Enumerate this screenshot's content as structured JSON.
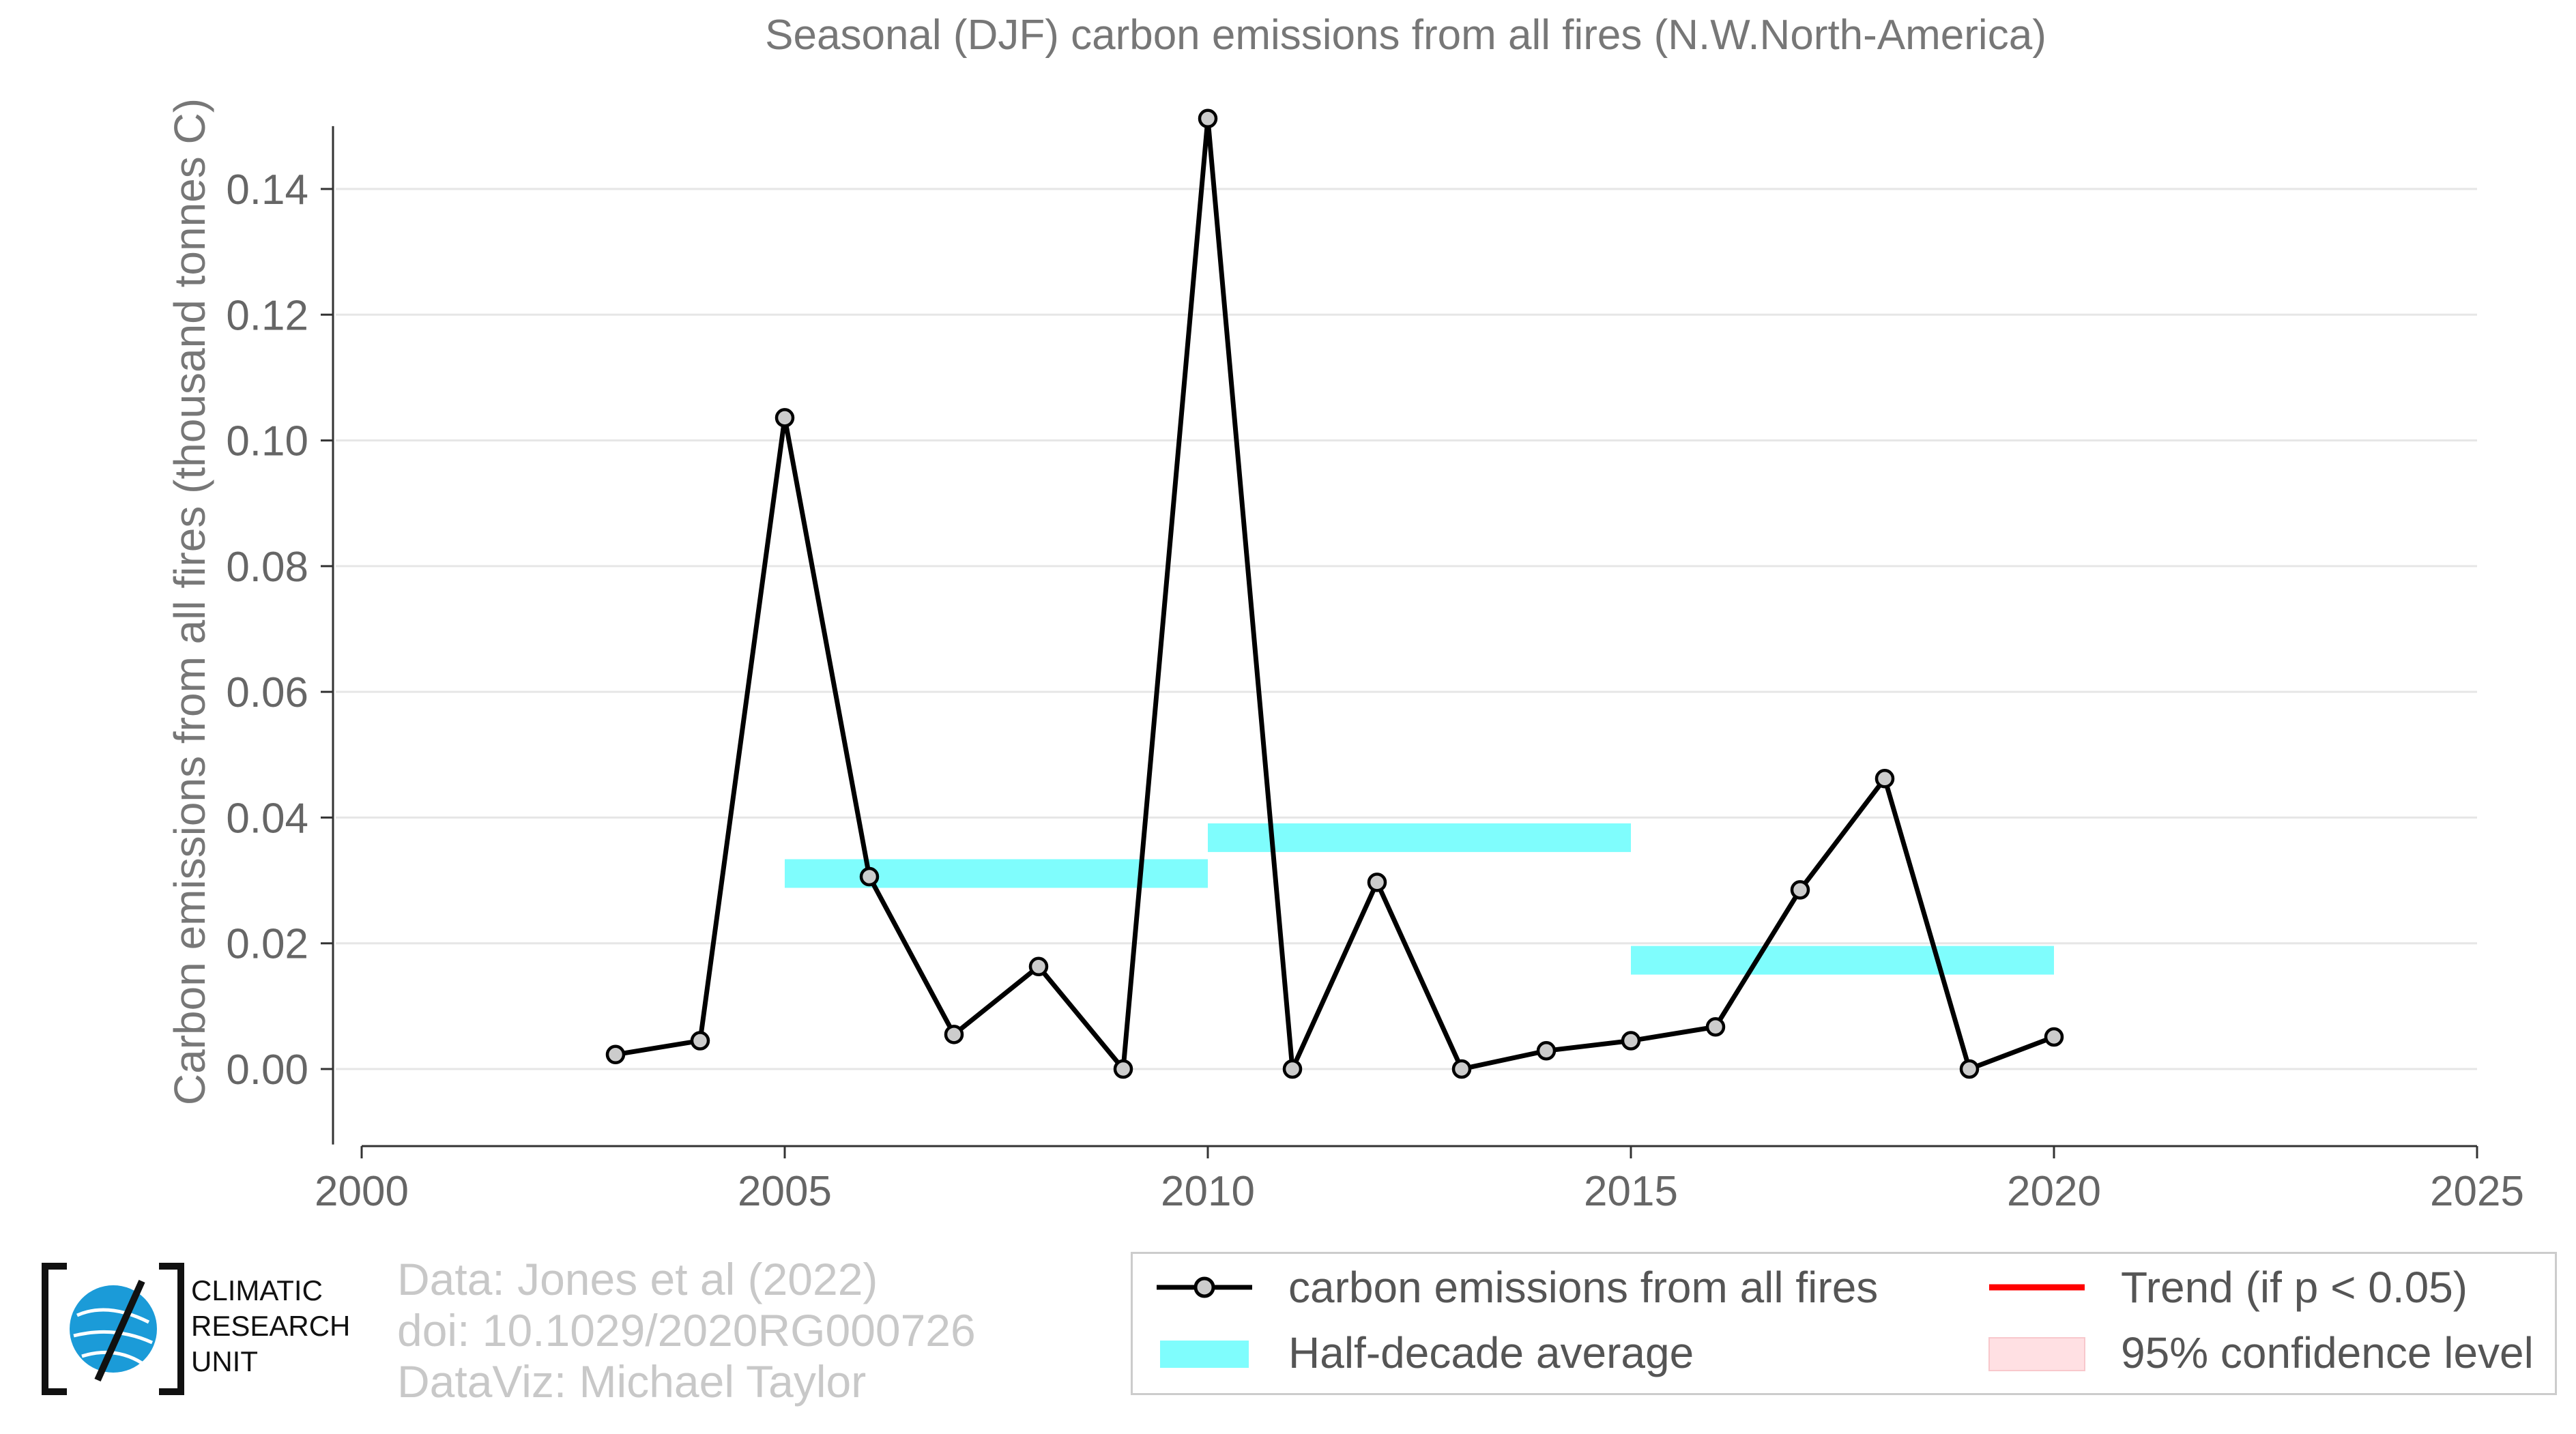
{
  "chart_data": {
    "type": "line",
    "title": "Seasonal (DJF) carbon emissions from all fires (N.W.North-America)",
    "ylabel": "Carbon emissions from all fires (thousand tonnes C)",
    "xlabel": "",
    "xlim": [
      2000,
      2025
    ],
    "ylim": [
      -0.012,
      0.15
    ],
    "x_ticks": [
      "2000",
      "2005",
      "2010",
      "2015",
      "2020",
      "2025"
    ],
    "y_ticks": [
      "0.00",
      "0.02",
      "0.04",
      "0.06",
      "0.08",
      "0.10",
      "0.12",
      "0.14"
    ],
    "grid": "horizontal",
    "series": [
      {
        "name": "carbon emissions from all fires",
        "color": "#000000",
        "marker_fill": "#cccccc",
        "x": [
          2003,
          2004,
          2005,
          2006,
          2007,
          2008,
          2009,
          2010,
          2011,
          2012,
          2013,
          2014,
          2015,
          2016,
          2017,
          2018,
          2019,
          2020
        ],
        "values": [
          0.0023,
          0.0045,
          0.1036,
          0.0306,
          0.0055,
          0.0163,
          0.0,
          0.1512,
          0.0,
          0.0297,
          0.0,
          0.0029,
          0.0045,
          0.0067,
          0.0285,
          0.0462,
          0.0,
          0.0051
        ]
      }
    ],
    "half_decade_average": {
      "name": "Half-decade average",
      "color": "#7ffdfd",
      "segments": [
        {
          "x_start": 2005,
          "x_end": 2010,
          "value": 0.0311
        },
        {
          "x_start": 2010,
          "x_end": 2015,
          "value": 0.0368
        },
        {
          "x_start": 2015,
          "x_end": 2020,
          "value": 0.0173
        }
      ]
    },
    "legend": {
      "position": "bottom-right",
      "entries": [
        "carbon emissions from all fires",
        "Half-decade average",
        "Trend (if p < 0.05)",
        "95% confidence level"
      ],
      "trend_color": "#ff0000",
      "ci_color": "#ffe0e3"
    }
  },
  "credits": {
    "line1": "Data: Jones et al (2022)",
    "line2": "doi: 10.1029/2020RG000726",
    "line3": "DataViz: Michael Taylor"
  },
  "logo": {
    "line1": "CLIMATIC",
    "line2": "RESEARCH",
    "line3": "UNIT"
  }
}
